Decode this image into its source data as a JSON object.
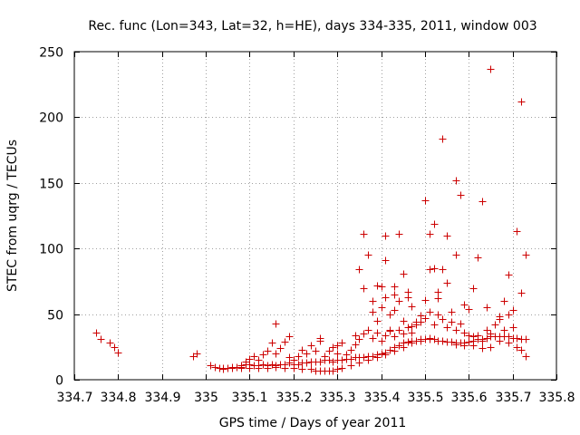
{
  "chart_data": {
    "type": "scatter",
    "title": "Rec. func (Lon=343, Lat=32, h=HE), days 334-335, 2011, window 003",
    "xlabel": "GPS time / Days of year 2011",
    "ylabel": "STEC from uqrg / TECUs",
    "xlim": [
      334.7,
      335.8
    ],
    "ylim": [
      0,
      250
    ],
    "x_ticks": [
      334.7,
      334.8,
      334.9,
      335.0,
      335.1,
      335.2,
      335.3,
      335.4,
      335.5,
      335.6,
      335.7,
      335.8
    ],
    "x_tick_labels": [
      "334.7",
      "334.8",
      "334.9",
      "335",
      "335.1",
      "335.2",
      "335.3",
      "335.4",
      "335.5",
      "335.6",
      "335.7",
      "335.8"
    ],
    "y_ticks": [
      0,
      50,
      100,
      150,
      200,
      250
    ],
    "y_tick_labels": [
      "0",
      "50",
      "100",
      "150",
      "200",
      "250"
    ],
    "grid": true,
    "marker": "+",
    "marker_color": "#cc0000",
    "points": [
      [
        334.75,
        36
      ],
      [
        334.76,
        31
      ],
      [
        334.78,
        28
      ],
      [
        334.79,
        25
      ],
      [
        334.8,
        21
      ],
      [
        334.97,
        18
      ],
      [
        334.98,
        20
      ],
      [
        335.01,
        11
      ],
      [
        335.02,
        10
      ],
      [
        335.03,
        9
      ],
      [
        335.04,
        9
      ],
      [
        335.05,
        9
      ],
      [
        335.06,
        10
      ],
      [
        335.07,
        10
      ],
      [
        335.08,
        11
      ],
      [
        335.09,
        12
      ],
      [
        335.1,
        12
      ],
      [
        335.11,
        11
      ],
      [
        335.12,
        11
      ],
      [
        335.13,
        12
      ],
      [
        335.14,
        11
      ],
      [
        335.15,
        12
      ],
      [
        335.16,
        11
      ],
      [
        335.17,
        12
      ],
      [
        335.18,
        12
      ],
      [
        335.19,
        13
      ],
      [
        335.2,
        12
      ],
      [
        335.21,
        12
      ],
      [
        335.22,
        13
      ],
      [
        335.23,
        13
      ],
      [
        335.24,
        14
      ],
      [
        335.25,
        14
      ],
      [
        335.26,
        14
      ],
      [
        335.27,
        15
      ],
      [
        335.28,
        15
      ],
      [
        335.29,
        14
      ],
      [
        335.3,
        15
      ],
      [
        335.31,
        15
      ],
      [
        335.32,
        16
      ],
      [
        335.33,
        16
      ],
      [
        335.34,
        17
      ],
      [
        335.35,
        17
      ],
      [
        335.36,
        17
      ],
      [
        335.37,
        18
      ],
      [
        335.38,
        18
      ],
      [
        335.39,
        19
      ],
      [
        335.4,
        20
      ],
      [
        335.41,
        21
      ],
      [
        335.42,
        23
      ],
      [
        335.43,
        25
      ],
      [
        335.44,
        26
      ],
      [
        335.45,
        28
      ],
      [
        335.46,
        29
      ],
      [
        335.47,
        30
      ],
      [
        335.48,
        30
      ],
      [
        335.49,
        31
      ],
      [
        335.5,
        31
      ],
      [
        335.51,
        31
      ],
      [
        335.52,
        31
      ],
      [
        335.53,
        30
      ],
      [
        335.54,
        30
      ],
      [
        335.55,
        29
      ],
      [
        335.56,
        29
      ],
      [
        335.57,
        28
      ],
      [
        335.58,
        28
      ],
      [
        335.59,
        28
      ],
      [
        335.6,
        29
      ],
      [
        335.61,
        30
      ],
      [
        335.62,
        31
      ],
      [
        335.63,
        31
      ],
      [
        335.64,
        32
      ],
      [
        335.65,
        33
      ],
      [
        335.66,
        33
      ],
      [
        335.67,
        33
      ],
      [
        335.68,
        33
      ],
      [
        335.69,
        33
      ],
      [
        335.7,
        32
      ],
      [
        335.71,
        32
      ],
      [
        335.72,
        31
      ],
      [
        335.73,
        31
      ],
      [
        335.04,
        8
      ],
      [
        335.06,
        9
      ],
      [
        335.08,
        9
      ],
      [
        335.1,
        9
      ],
      [
        335.12,
        9
      ],
      [
        335.14,
        9
      ],
      [
        335.16,
        10
      ],
      [
        335.18,
        9
      ],
      [
        335.2,
        9
      ],
      [
        335.22,
        8
      ],
      [
        335.24,
        8
      ],
      [
        335.25,
        7
      ],
      [
        335.26,
        7
      ],
      [
        335.27,
        7
      ],
      [
        335.28,
        7
      ],
      [
        335.29,
        7
      ],
      [
        335.3,
        8
      ],
      [
        335.31,
        9
      ],
      [
        335.33,
        11
      ],
      [
        335.35,
        13
      ],
      [
        335.37,
        15
      ],
      [
        335.39,
        17
      ],
      [
        335.41,
        19
      ],
      [
        335.43,
        22
      ],
      [
        335.45,
        25
      ],
      [
        335.47,
        28
      ],
      [
        335.49,
        30
      ],
      [
        335.51,
        32
      ],
      [
        335.53,
        30
      ],
      [
        335.55,
        29
      ],
      [
        335.57,
        27
      ],
      [
        335.59,
        26
      ],
      [
        335.61,
        26
      ],
      [
        335.63,
        24
      ],
      [
        335.65,
        25
      ],
      [
        335.67,
        30
      ],
      [
        335.69,
        28
      ],
      [
        335.71,
        25
      ],
      [
        335.72,
        23
      ],
      [
        335.73,
        18
      ],
      [
        335.08,
        10
      ],
      [
        335.09,
        14
      ],
      [
        335.1,
        16
      ],
      [
        335.11,
        18
      ],
      [
        335.12,
        15
      ],
      [
        335.13,
        19
      ],
      [
        335.14,
        22
      ],
      [
        335.15,
        28
      ],
      [
        335.16,
        20
      ],
      [
        335.17,
        24
      ],
      [
        335.18,
        29
      ],
      [
        335.19,
        17
      ],
      [
        335.2,
        15
      ],
      [
        335.21,
        18
      ],
      [
        335.22,
        23
      ],
      [
        335.23,
        20
      ],
      [
        335.24,
        26
      ],
      [
        335.25,
        22
      ],
      [
        335.26,
        30
      ],
      [
        335.27,
        18
      ],
      [
        335.28,
        22
      ],
      [
        335.29,
        25
      ],
      [
        335.3,
        20
      ],
      [
        335.31,
        28
      ],
      [
        335.32,
        19
      ],
      [
        335.33,
        23
      ],
      [
        335.34,
        27
      ],
      [
        335.35,
        31
      ],
      [
        335.36,
        35
      ],
      [
        335.37,
        38
      ],
      [
        335.38,
        32
      ],
      [
        335.39,
        36
      ],
      [
        335.4,
        30
      ],
      [
        335.41,
        34
      ],
      [
        335.42,
        37
      ],
      [
        335.43,
        33
      ],
      [
        335.44,
        38
      ],
      [
        335.45,
        35
      ],
      [
        335.46,
        40
      ],
      [
        335.47,
        36
      ],
      [
        335.48,
        42
      ],
      [
        335.49,
        44
      ],
      [
        335.5,
        47
      ],
      [
        335.51,
        52
      ],
      [
        335.52,
        42
      ],
      [
        335.53,
        50
      ],
      [
        335.54,
        46
      ],
      [
        335.55,
        40
      ],
      [
        335.56,
        44
      ],
      [
        335.57,
        38
      ],
      [
        335.58,
        43
      ],
      [
        335.59,
        36
      ],
      [
        335.6,
        34
      ],
      [
        335.61,
        33
      ],
      [
        335.62,
        34
      ],
      [
        335.63,
        30
      ],
      [
        335.64,
        38
      ],
      [
        335.65,
        35
      ],
      [
        335.66,
        42
      ],
      [
        335.67,
        46
      ],
      [
        335.68,
        38
      ],
      [
        335.69,
        50
      ],
      [
        335.7,
        40
      ],
      [
        335.16,
        43
      ],
      [
        335.19,
        33
      ],
      [
        335.26,
        32
      ],
      [
        335.3,
        26
      ],
      [
        335.34,
        34
      ],
      [
        335.35,
        84
      ],
      [
        335.36,
        70
      ],
      [
        335.36,
        111
      ],
      [
        335.37,
        95
      ],
      [
        335.38,
        60
      ],
      [
        335.38,
        52
      ],
      [
        335.39,
        72
      ],
      [
        335.39,
        45
      ],
      [
        335.4,
        71
      ],
      [
        335.4,
        55
      ],
      [
        335.41,
        63
      ],
      [
        335.41,
        110
      ],
      [
        335.41,
        91
      ],
      [
        335.42,
        50
      ],
      [
        335.42,
        38
      ],
      [
        335.43,
        65
      ],
      [
        335.43,
        71
      ],
      [
        335.43,
        53
      ],
      [
        335.44,
        60
      ],
      [
        335.44,
        111
      ],
      [
        335.45,
        81
      ],
      [
        335.45,
        45
      ],
      [
        335.46,
        63
      ],
      [
        335.46,
        67
      ],
      [
        335.47,
        41
      ],
      [
        335.47,
        56
      ],
      [
        335.48,
        44
      ],
      [
        335.49,
        49
      ],
      [
        335.5,
        137
      ],
      [
        335.5,
        61
      ],
      [
        335.51,
        111
      ],
      [
        335.51,
        84
      ],
      [
        335.52,
        119
      ],
      [
        335.52,
        85
      ],
      [
        335.53,
        67
      ],
      [
        335.53,
        62
      ],
      [
        335.54,
        184
      ],
      [
        335.54,
        84
      ],
      [
        335.55,
        110
      ],
      [
        335.55,
        74
      ],
      [
        335.56,
        52
      ],
      [
        335.57,
        152
      ],
      [
        335.57,
        95
      ],
      [
        335.58,
        141
      ],
      [
        335.59,
        57
      ],
      [
        335.6,
        54
      ],
      [
        335.61,
        70
      ],
      [
        335.62,
        93
      ],
      [
        335.63,
        136
      ],
      [
        335.64,
        55
      ],
      [
        335.65,
        237
      ],
      [
        335.67,
        48
      ],
      [
        335.68,
        60
      ],
      [
        335.69,
        80
      ],
      [
        335.7,
        53
      ],
      [
        335.71,
        113
      ],
      [
        335.72,
        212
      ],
      [
        335.72,
        66
      ],
      [
        335.73,
        95
      ]
    ]
  }
}
